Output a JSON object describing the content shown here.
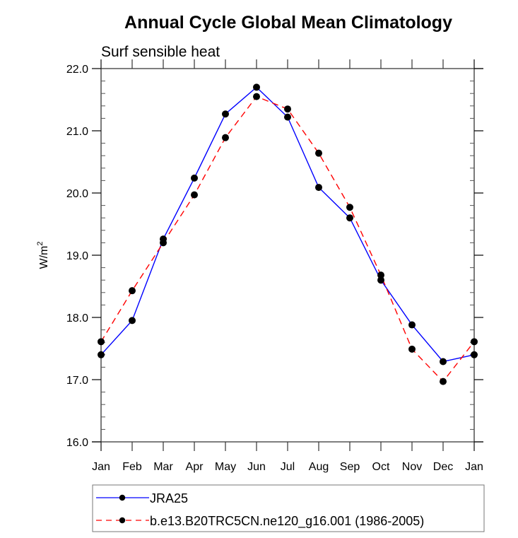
{
  "chart_data": {
    "type": "line",
    "title": "Annual Cycle Global Mean Climatology",
    "subtitle": "Surf sensible heat",
    "xlabel": "",
    "ylabel": "W/m",
    "ylabel_superscript": "2",
    "categories": [
      "Jan",
      "Feb",
      "Mar",
      "Apr",
      "May",
      "Jun",
      "Jul",
      "Aug",
      "Sep",
      "Oct",
      "Nov",
      "Dec",
      "Jan"
    ],
    "ylim": [
      16.0,
      22.0
    ],
    "yticks": [
      "16.0",
      "17.0",
      "18.0",
      "19.0",
      "20.0",
      "21.0",
      "22.0"
    ],
    "y_minor_step": 0.2,
    "grid": false,
    "legend_position": "bottom",
    "series": [
      {
        "name": "JRA25",
        "color": "#0000ff",
        "dash": "solid",
        "marker": "filled-circle",
        "values": [
          17.4,
          17.95,
          19.26,
          20.24,
          21.27,
          21.7,
          21.22,
          20.09,
          19.6,
          18.6,
          17.88,
          17.29,
          17.4
        ]
      },
      {
        "name": "b.e13.B20TRC5CN.ne120_g16.001 (1986-2005)",
        "color": "#ff0000",
        "dash": "dashed",
        "marker": "filled-circle",
        "values": [
          17.61,
          18.43,
          19.2,
          19.97,
          20.89,
          21.55,
          21.35,
          20.64,
          19.77,
          18.68,
          17.49,
          16.97,
          17.61
        ]
      }
    ]
  }
}
